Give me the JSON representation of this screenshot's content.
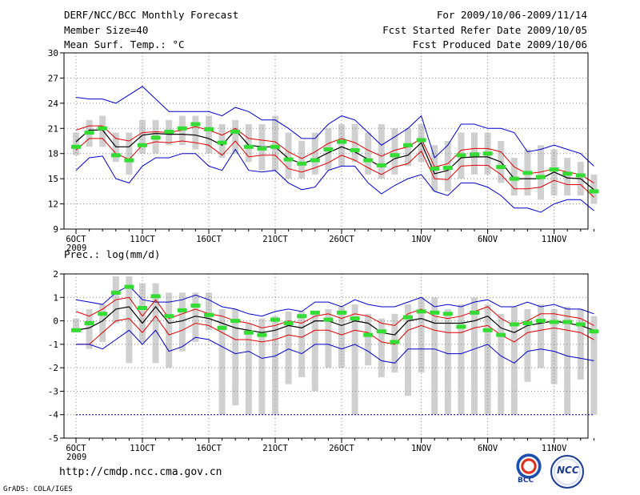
{
  "header": {
    "title": "DERF/NCC/BCC Monthly Forecast",
    "member_size": "Member Size=40",
    "variable_top": "Mean Surf. Temp.: °C",
    "forecast_period": "For 2009/10/06-2009/11/14",
    "fcst_started": "Fcst Started Refer Date 2009/10/05",
    "fcst_produced": "Fcst Produced Date 2009/10/06"
  },
  "variable_bottom": "Prec.: log(mm/d)",
  "footer": {
    "url": "http://cmdp.ncc.cma.gov.cn",
    "grads": "GrADS: COLA/IGES",
    "logo_bcc": "BCC",
    "logo_ncc": "NCC"
  },
  "colors": {
    "mean": "#000000",
    "spread": "#e00000",
    "extreme": "#0000cc",
    "obs": "#33dd33",
    "box": "#d0d0d0",
    "grid": "#888888"
  },
  "chart_data": [
    {
      "type": "line",
      "name": "temperature",
      "title": "Mean Surf. Temp.: °C",
      "ylim": [
        9,
        30
      ],
      "yticks": [
        9,
        12,
        15,
        18,
        21,
        24,
        27,
        30
      ],
      "x_tick_labels": [
        "6OCT",
        "11OCT",
        "16OCT",
        "21OCT",
        "26OCT",
        "1NOV",
        "6NOV",
        "11NOV"
      ],
      "x_tick_days": [
        0,
        5,
        10,
        15,
        20,
        26,
        31,
        36
      ],
      "x_sublabel": "2009",
      "grid": true,
      "days": 40,
      "series": [
        {
          "name": "ensemble-max",
          "values": [
            24.7,
            24.5,
            24.5,
            24.0,
            25.0,
            26.0,
            24.5,
            23.0,
            23.0,
            23.0,
            23.0,
            22.5,
            23.5,
            23.0,
            22.0,
            22.0,
            21.0,
            19.8,
            19.8,
            21.5,
            22.5,
            22.0,
            20.5,
            19.0,
            20.0,
            21.0,
            22.5,
            17.5,
            19.0,
            21.5,
            21.5,
            21.0,
            21.0,
            20.5,
            18.2,
            18.5,
            19.0,
            18.5,
            18.0,
            16.5
          ]
        },
        {
          "name": "upper-spread",
          "values": [
            20.8,
            21.3,
            21.3,
            19.8,
            19.5,
            20.5,
            20.6,
            20.5,
            20.8,
            21.2,
            20.8,
            20.2,
            21.0,
            19.8,
            19.6,
            19.4,
            18.2,
            17.4,
            18.2,
            19.2,
            19.8,
            19.3,
            18.4,
            17.7,
            18.4,
            18.8,
            19.8,
            16.4,
            16.8,
            18.4,
            18.6,
            18.6,
            18.2,
            16.4,
            15.6,
            15.8,
            16.2,
            15.8,
            15.5,
            14.5
          ]
        },
        {
          "name": "ensemble-mean",
          "values": [
            19.4,
            20.8,
            20.8,
            18.8,
            18.8,
            20.2,
            20.4,
            20.3,
            20.3,
            20.2,
            19.8,
            19.0,
            20.8,
            19.0,
            18.8,
            18.8,
            17.4,
            16.8,
            17.3,
            18.1,
            18.8,
            18.2,
            17.3,
            16.4,
            17.4,
            17.8,
            19.3,
            15.6,
            16.0,
            17.5,
            17.6,
            17.6,
            17.0,
            15.0,
            15.0,
            15.0,
            15.8,
            15.1,
            15.0,
            13.7
          ]
        },
        {
          "name": "lower-spread",
          "values": [
            18.4,
            19.8,
            19.8,
            18.0,
            17.3,
            19.0,
            19.4,
            19.3,
            19.5,
            19.3,
            19.0,
            17.8,
            19.5,
            17.6,
            17.8,
            17.8,
            16.2,
            15.8,
            16.3,
            16.9,
            17.8,
            17.2,
            16.3,
            15.5,
            16.4,
            16.8,
            18.3,
            15.0,
            14.9,
            16.5,
            16.6,
            16.6,
            15.5,
            13.8,
            13.8,
            14.0,
            14.8,
            14.3,
            14.3,
            12.8
          ]
        },
        {
          "name": "ensemble-min",
          "values": [
            16.0,
            17.5,
            17.7,
            15.0,
            14.5,
            16.5,
            17.5,
            17.5,
            18.0,
            18.0,
            16.5,
            16.0,
            18.5,
            16.0,
            15.8,
            16.0,
            14.5,
            13.7,
            14.0,
            16.0,
            16.5,
            16.5,
            14.5,
            13.2,
            14.2,
            15.0,
            15.5,
            13.5,
            13.0,
            14.5,
            14.5,
            14.0,
            13.0,
            11.5,
            11.5,
            11.0,
            12.0,
            12.5,
            12.5,
            11.2
          ]
        },
        {
          "name": "observed",
          "values": [
            18.8,
            20.5,
            21.0,
            17.8,
            17.2,
            19.0,
            19.9,
            20.6,
            21.0,
            21.5,
            20.9,
            19.3,
            20.6,
            18.8,
            18.6,
            18.8,
            17.3,
            16.8,
            17.2,
            18.5,
            19.4,
            18.4,
            17.2,
            16.6,
            17.8,
            19.0,
            19.6,
            16.2,
            16.3,
            17.8,
            17.9,
            18.0,
            16.4,
            15.0,
            15.7,
            15.2,
            16.1,
            15.6,
            15.4,
            13.5
          ]
        }
      ],
      "boxes": [
        [
          17.8,
          20.5
        ],
        [
          18.8,
          22.0
        ],
        [
          18.8,
          22.5
        ],
        [
          17.0,
          20.5
        ],
        [
          15.5,
          20.5
        ],
        [
          18.0,
          22.0
        ],
        [
          18.0,
          22.0
        ],
        [
          19.0,
          22.0
        ],
        [
          19.0,
          22.5
        ],
        [
          18.5,
          22.5
        ],
        [
          18.0,
          22.5
        ],
        [
          17.5,
          21.5
        ],
        [
          18.0,
          22.0
        ],
        [
          17.0,
          21.5
        ],
        [
          16.0,
          21.5
        ],
        [
          16.0,
          22.5
        ],
        [
          15.0,
          20.5
        ],
        [
          15.0,
          19.5
        ],
        [
          15.5,
          20.5
        ],
        [
          16.0,
          21.0
        ],
        [
          16.5,
          21.5
        ],
        [
          17.0,
          21.5
        ],
        [
          15.5,
          20.5
        ],
        [
          15.0,
          21.5
        ],
        [
          15.5,
          21.0
        ],
        [
          16.5,
          21.0
        ],
        [
          17.0,
          21.5
        ],
        [
          13.5,
          19.0
        ],
        [
          13.5,
          19.5
        ],
        [
          15.0,
          20.5
        ],
        [
          15.5,
          20.5
        ],
        [
          15.5,
          20.5
        ],
        [
          14.5,
          19.5
        ],
        [
          13.0,
          17.5
        ],
        [
          13.0,
          18.5
        ],
        [
          12.5,
          19.0
        ],
        [
          13.0,
          18.5
        ],
        [
          13.0,
          17.5
        ],
        [
          13.0,
          17.0
        ],
        [
          12.0,
          15.5
        ]
      ]
    },
    {
      "type": "line",
      "name": "precipitation",
      "title": "Prec.: log(mm/d)",
      "ylim": [
        -5,
        2
      ],
      "yticks": [
        -5,
        -4,
        -3,
        -2,
        -1,
        0,
        1,
        2
      ],
      "x_tick_labels": [
        "6OCT",
        "11OCT",
        "16OCT",
        "21OCT",
        "26OCT",
        "1NOV",
        "6NOV",
        "11NOV"
      ],
      "x_tick_days": [
        0,
        5,
        10,
        15,
        20,
        26,
        31,
        36
      ],
      "x_sublabel": "2009",
      "grid": true,
      "days": 40,
      "series": [
        {
          "name": "ensemble-max",
          "values": [
            0.9,
            0.8,
            0.7,
            1.2,
            1.5,
            0.9,
            0.8,
            0.8,
            0.9,
            1.1,
            0.9,
            0.6,
            0.5,
            0.3,
            0.2,
            0.4,
            0.5,
            0.4,
            0.8,
            0.8,
            0.6,
            0.9,
            0.7,
            0.6,
            0.6,
            0.8,
            1.0,
            0.6,
            0.7,
            0.6,
            0.8,
            0.9,
            0.6,
            0.6,
            0.8,
            0.6,
            0.7,
            0.5,
            0.5,
            0.3
          ]
        },
        {
          "name": "upper-spread",
          "values": [
            0.4,
            0.2,
            0.5,
            0.9,
            1.0,
            0.2,
            0.9,
            0.1,
            0.3,
            0.5,
            0.3,
            0.2,
            0.0,
            -0.1,
            -0.3,
            -0.2,
            0.0,
            -0.1,
            0.2,
            0.3,
            0.1,
            0.3,
            0.2,
            -0.1,
            -0.2,
            0.3,
            0.5,
            0.2,
            0.1,
            0.2,
            0.4,
            0.6,
            0.1,
            -0.2,
            0.0,
            0.3,
            0.3,
            0.2,
            0.1,
            -0.2
          ]
        },
        {
          "name": "ensemble-mean",
          "values": [
            -0.4,
            -0.3,
            0.0,
            0.5,
            0.6,
            -0.1,
            0.6,
            -0.1,
            0.0,
            0.2,
            0.1,
            -0.1,
            -0.3,
            -0.4,
            -0.5,
            -0.4,
            -0.2,
            -0.3,
            0.0,
            0.0,
            -0.2,
            0.0,
            -0.1,
            -0.5,
            -0.6,
            0.0,
            0.1,
            -0.1,
            -0.1,
            -0.1,
            0.0,
            0.2,
            -0.3,
            -0.5,
            -0.2,
            -0.1,
            0.0,
            -0.1,
            -0.2,
            -0.4
          ]
        },
        {
          "name": "lower-spread",
          "values": [
            -1.0,
            -1.0,
            -0.5,
            0.0,
            0.1,
            -0.5,
            0.2,
            -0.6,
            -0.4,
            -0.1,
            -0.2,
            -0.5,
            -0.8,
            -0.8,
            -0.9,
            -0.8,
            -0.6,
            -0.7,
            -0.4,
            -0.4,
            -0.6,
            -0.4,
            -0.5,
            -0.9,
            -1.0,
            -0.4,
            -0.2,
            -0.4,
            -0.5,
            -0.5,
            -0.3,
            -0.2,
            -0.6,
            -0.9,
            -0.5,
            -0.4,
            -0.3,
            -0.4,
            -0.5,
            -0.8
          ]
        },
        {
          "name": "ensemble-min",
          "values": [
            -1.0,
            -1.0,
            -1.2,
            -0.8,
            -0.4,
            -1.0,
            -0.4,
            -1.3,
            -1.1,
            -0.7,
            -0.8,
            -1.1,
            -1.4,
            -1.3,
            -1.6,
            -1.5,
            -1.2,
            -1.4,
            -1.0,
            -1.0,
            -1.2,
            -1.0,
            -1.3,
            -1.7,
            -1.8,
            -1.2,
            -1.2,
            -1.2,
            -1.4,
            -1.4,
            -1.2,
            -1.0,
            -1.5,
            -1.8,
            -1.3,
            -1.2,
            -1.3,
            -1.5,
            -1.6,
            -1.7
          ]
        },
        {
          "name": "observed",
          "values": [
            -0.4,
            -0.1,
            0.3,
            1.2,
            1.45,
            0.55,
            1.05,
            0.2,
            0.45,
            0.65,
            0.25,
            -0.3,
            0.0,
            -0.5,
            -0.6,
            0.05,
            -0.1,
            0.2,
            0.35,
            0.05,
            0.35,
            0.1,
            -0.6,
            -0.45,
            -0.9,
            0.15,
            0.4,
            0.35,
            0.3,
            -0.25,
            0.35,
            -0.4,
            -0.6,
            -0.15,
            -0.1,
            0.0,
            -0.05,
            -0.05,
            -0.15,
            -0.45
          ]
        },
        {
          "name": "climatology-floor",
          "values": [
            -4,
            -4,
            -4,
            -4,
            -4,
            -4,
            -4,
            -4,
            -4,
            -4,
            -4,
            -4,
            -4,
            -4,
            -4,
            -4,
            -4,
            -4,
            -4,
            -4,
            -4,
            -4,
            -4,
            -4,
            -4,
            -4,
            -4,
            -4,
            -4,
            -4,
            -4,
            -4,
            -4,
            -4,
            -4,
            -4,
            -4,
            -4,
            -4,
            -4
          ]
        }
      ],
      "boxes": [
        [
          -0.5,
          0.1
        ],
        [
          -1.2,
          0.5
        ],
        [
          -0.9,
          0.7
        ],
        [
          -0.1,
          1.9
        ],
        [
          -1.8,
          1.9
        ],
        [
          -0.9,
          1.6
        ],
        [
          -1.8,
          1.6
        ],
        [
          -2.0,
          1.2
        ],
        [
          -1.3,
          1.2
        ],
        [
          -0.9,
          1.2
        ],
        [
          -0.4,
          1.2
        ],
        [
          -4.0,
          0.5
        ],
        [
          -3.6,
          0.5
        ],
        [
          -4.0,
          -0.1
        ],
        [
          -4.0,
          0.1
        ],
        [
          -4.0,
          0.2
        ],
        [
          -2.7,
          0.4
        ],
        [
          -2.4,
          0.4
        ],
        [
          -3.0,
          0.4
        ],
        [
          -2.0,
          0.5
        ],
        [
          -2.0,
          0.6
        ],
        [
          -4.0,
          0.7
        ],
        [
          -1.9,
          0.3
        ],
        [
          -2.4,
          0.1
        ],
        [
          -2.2,
          0.3
        ],
        [
          -3.2,
          0.7
        ],
        [
          -2.2,
          1.0
        ],
        [
          -4.0,
          1.0
        ],
        [
          -4.0,
          0.5
        ],
        [
          -4.0,
          0.7
        ],
        [
          -4.0,
          1.0
        ],
        [
          -4.0,
          0.7
        ],
        [
          -4.0,
          0.3
        ],
        [
          -4.0,
          0.6
        ],
        [
          -2.6,
          0.5
        ],
        [
          -2.0,
          0.7
        ],
        [
          -2.7,
          0.5
        ],
        [
          -4.0,
          0.6
        ],
        [
          -2.5,
          0.5
        ],
        [
          -4.0,
          0.2
        ]
      ]
    }
  ]
}
